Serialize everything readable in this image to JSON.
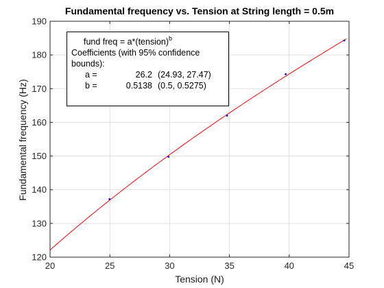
{
  "chart_data": {
    "type": "scatter",
    "title": "Fundamental frequency vs. Tension at String length = 0.5m",
    "xlabel": "Tension (N)",
    "ylabel": "Fundamental frequency (Hz)",
    "xlim": [
      20,
      45
    ],
    "ylim": [
      120,
      190
    ],
    "xticks": [
      20,
      25,
      30,
      35,
      40,
      45
    ],
    "yticks": [
      120,
      130,
      140,
      150,
      160,
      170,
      180,
      190
    ],
    "grid": true,
    "series": [
      {
        "type": "scatter",
        "color": "#0000ff",
        "x": [
          24.97,
          29.9,
          34.8,
          39.7,
          44.6
        ],
        "y": [
          137.2,
          149.8,
          162.0,
          174.3,
          184.3
        ]
      },
      {
        "type": "line",
        "color": "#ff0000",
        "model": "power",
        "a": 26.2,
        "b": 0.5138,
        "x_range": [
          20,
          44.8
        ]
      }
    ],
    "annotation": {
      "equation_base": "fund freq = a*(tension)",
      "equation_exp": "b",
      "line1": "Coefficients (with 95% confidence",
      "line2": "bounds):",
      "coefficients": [
        {
          "name": "a =",
          "value": "26.2",
          "bounds": "(24.93, 27.47)"
        },
        {
          "name": "b =",
          "value": "0.5138",
          "bounds": "(0.5, 0.5275)"
        }
      ]
    }
  }
}
